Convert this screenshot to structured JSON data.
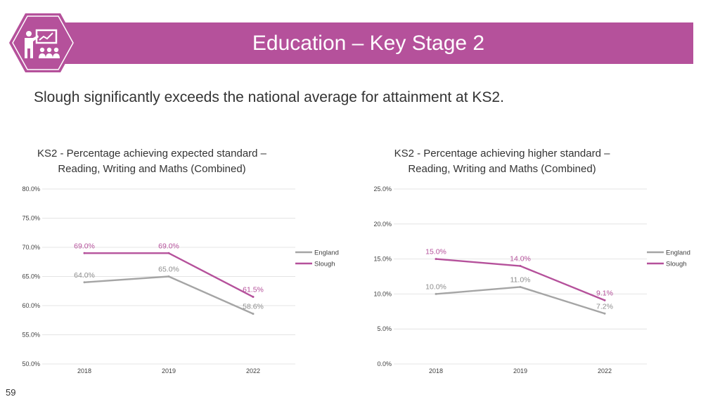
{
  "header": {
    "title": "Education – Key Stage 2",
    "icon": "teacher-presentation-icon",
    "accent": "#b5519b"
  },
  "subtitle": "Slough significantly exceeds the national average for attainment at KS2.",
  "page_number": "59",
  "chart_data": [
    {
      "type": "line",
      "title_lines": [
        "KS2 - Percentage achieving expected standard –",
        "Reading, Writing and Maths (Combined)"
      ],
      "categories": [
        "2018",
        "2019",
        "2022"
      ],
      "ylim": [
        50,
        80
      ],
      "yticks": [
        50,
        55,
        60,
        65,
        70,
        75,
        80
      ],
      "ytick_labels": [
        "50.0%",
        "55.0%",
        "60.0%",
        "65.0%",
        "70.0%",
        "75.0%",
        "80.0%"
      ],
      "grid": true,
      "legend": "right",
      "series": [
        {
          "name": "England",
          "values": [
            64.0,
            65.0,
            58.6
          ],
          "labels": [
            "64.0%",
            "65.0%",
            "58.6%"
          ],
          "color": "#a5a5a5"
        },
        {
          "name": "Slough",
          "values": [
            69.0,
            69.0,
            61.5
          ],
          "labels": [
            "69.0%",
            "69.0%",
            "61.5%"
          ],
          "color": "#b5519b"
        }
      ]
    },
    {
      "type": "line",
      "title_lines": [
        "KS2 - Percentage achieving higher standard –",
        "Reading, Writing and Maths (Combined)"
      ],
      "categories": [
        "2018",
        "2019",
        "2022"
      ],
      "ylim": [
        0,
        25
      ],
      "yticks": [
        0,
        5,
        10,
        15,
        20,
        25
      ],
      "ytick_labels": [
        "0.0%",
        "5.0%",
        "10.0%",
        "15.0%",
        "20.0%",
        "25.0%"
      ],
      "grid": true,
      "legend": "right",
      "series": [
        {
          "name": "England",
          "values": [
            10.0,
            11.0,
            7.2
          ],
          "labels": [
            "10.0%",
            "11.0%",
            "7.2%"
          ],
          "color": "#a5a5a5"
        },
        {
          "name": "Slough",
          "values": [
            15.0,
            14.0,
            9.1
          ],
          "labels": [
            "15.0%",
            "14.0%",
            "9.1%"
          ],
          "color": "#b5519b"
        }
      ]
    }
  ]
}
